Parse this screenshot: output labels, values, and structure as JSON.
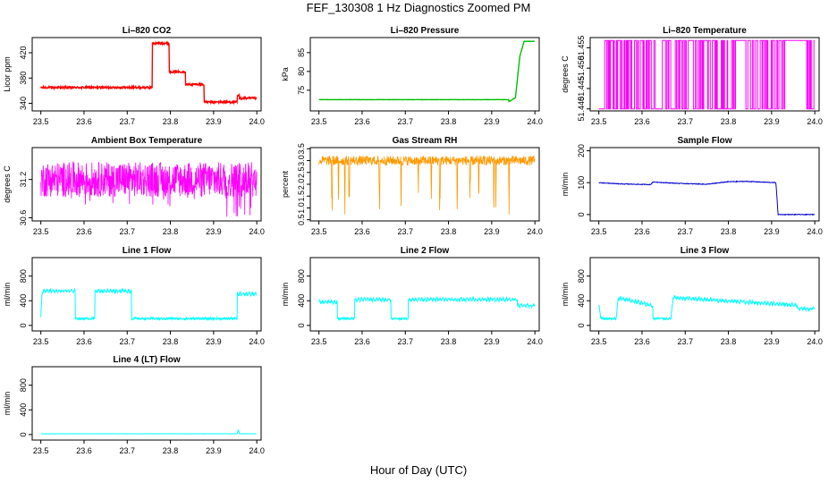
{
  "title": "FEF_130308  1 Hz Diagnostics Zoomed PM",
  "xlabel": "Hour of Day (UTC)",
  "chart_data": [
    {
      "type": "line",
      "title": "Li–820 CO2",
      "ylabel": "Licor ppm",
      "color": "#ff0000",
      "xlim": [
        23.48,
        24.01
      ],
      "ylim": [
        328,
        444
      ],
      "xticks": [
        "23.5",
        "23.6",
        "23.7",
        "23.8",
        "23.9",
        "24.0"
      ],
      "yticks": [
        340,
        380,
        420
      ],
      "series": [
        {
          "x": [
            23.5,
            23.758,
            23.758,
            23.797,
            23.797,
            23.835,
            23.835,
            23.878,
            23.878,
            23.955,
            23.955,
            23.96,
            23.96,
            24.0
          ],
          "y": [
            365,
            365,
            435,
            435,
            390,
            390,
            370,
            370,
            342,
            342,
            352,
            352,
            348,
            348
          ]
        }
      ]
    },
    {
      "type": "line",
      "title": "Li–820 Pressure",
      "ylabel": "kPa",
      "color": "#00c000",
      "xlim": [
        23.48,
        24.01
      ],
      "ylim": [
        69.5,
        89
      ],
      "xticks": [
        "23.5",
        "23.6",
        "23.7",
        "23.8",
        "23.9",
        "24.0"
      ],
      "yticks": [
        75,
        80,
        85
      ],
      "series": [
        {
          "x": [
            23.5,
            23.94,
            23.94,
            23.955,
            23.965,
            23.975,
            24.0
          ],
          "y": [
            72.5,
            72.5,
            72,
            73,
            84,
            88,
            88
          ]
        }
      ]
    },
    {
      "type": "line",
      "title": "Li–820 Temperature",
      "ylabel": "degrees C",
      "color": "#ff00ff",
      "xlim": [
        23.48,
        24.01
      ],
      "ylim": [
        51.4395,
        51.4575
      ],
      "xticks": [
        "23.5",
        "23.6",
        "23.7",
        "23.8",
        "23.9",
        "24.0"
      ],
      "yticks": [
        "51.440",
        "51.445",
        "51.450",
        "51.455"
      ],
      "series": [
        {
          "x": [
            23.5,
            24.0
          ],
          "y": [
            51.44,
            51.457
          ]
        }
      ]
    },
    {
      "type": "line",
      "title": "Ambient Box Temperature",
      "ylabel": "degrees C",
      "color": "#ff00ff",
      "xlim": [
        23.48,
        24.01
      ],
      "ylim": [
        30.55,
        31.7
      ],
      "xticks": [
        "23.5",
        "23.6",
        "23.7",
        "23.8",
        "23.9",
        "24.0"
      ],
      "yticks": [
        "30.6",
        "31.2"
      ],
      "series": [
        {
          "x": [
            23.5,
            24.0
          ],
          "y": [
            31.2,
            31.2
          ]
        }
      ]
    },
    {
      "type": "line",
      "title": "Gas Stream RH",
      "ylabel": "percent",
      "color": "#ff9900",
      "xlim": [
        23.48,
        24.01
      ],
      "ylim": [
        0.45,
        3.55
      ],
      "xticks": [
        "23.5",
        "23.6",
        "23.7",
        "23.8",
        "23.9",
        "24.0"
      ],
      "yticks": [
        "0.5",
        "1.0",
        "1.5",
        "2.0",
        "2.5",
        "3.0",
        "3.5"
      ],
      "series": [
        {
          "x": [
            23.5,
            24.0
          ],
          "y": [
            3.0,
            3.0
          ]
        }
      ]
    },
    {
      "type": "line",
      "title": "Sample Flow",
      "ylabel": "ml/min",
      "color": "#0000cc",
      "xlim": [
        23.48,
        24.01
      ],
      "ylim": [
        -20,
        210
      ],
      "xticks": [
        "23.5",
        "23.6",
        "23.7",
        "23.8",
        "23.9",
        "24.0"
      ],
      "yticks": [
        0,
        100,
        200
      ],
      "series": [
        {
          "x": [
            23.5,
            23.55,
            23.62,
            23.625,
            23.68,
            23.75,
            23.8,
            23.84,
            23.91,
            23.915,
            24.0
          ],
          "y": [
            100,
            96,
            94,
            102,
            98,
            95,
            103,
            104,
            100,
            0,
            0
          ]
        }
      ]
    },
    {
      "type": "line",
      "title": "Line 1 Flow",
      "ylabel": "ml/min",
      "color": "#00ffff",
      "xlim": [
        23.48,
        24.01
      ],
      "ylim": [
        -90,
        1100
      ],
      "xticks": [
        "23.5",
        "23.6",
        "23.7",
        "23.8",
        "23.9",
        "24.0"
      ],
      "yticks": [
        0,
        400,
        800
      ],
      "series": [
        {
          "x": [
            23.5,
            23.503,
            23.58,
            23.58,
            23.625,
            23.625,
            23.71,
            23.71,
            23.955,
            23.955,
            24.0
          ],
          "y": [
            130,
            560,
            560,
            110,
            110,
            560,
            560,
            110,
            110,
            510,
            510
          ]
        }
      ]
    },
    {
      "type": "line",
      "title": "Line 2 Flow",
      "ylabel": "ml/min",
      "color": "#00ffff",
      "xlim": [
        23.48,
        24.01
      ],
      "ylim": [
        -90,
        1100
      ],
      "xticks": [
        "23.5",
        "23.6",
        "23.7",
        "23.8",
        "23.9",
        "24.0"
      ],
      "yticks": [
        0,
        400,
        800
      ],
      "series": [
        {
          "x": [
            23.5,
            23.543,
            23.543,
            23.583,
            23.583,
            23.667,
            23.667,
            23.707,
            23.707,
            23.96,
            23.96,
            24.0
          ],
          "y": [
            380,
            380,
            110,
            110,
            420,
            420,
            110,
            110,
            420,
            420,
            320,
            320
          ]
        }
      ]
    },
    {
      "type": "line",
      "title": "Line 3 Flow",
      "ylabel": "ml/min",
      "color": "#00ffff",
      "xlim": [
        23.48,
        24.01
      ],
      "ylim": [
        -90,
        1100
      ],
      "xticks": [
        "23.5",
        "23.6",
        "23.7",
        "23.8",
        "23.9",
        "24.0"
      ],
      "yticks": [
        0,
        400,
        800
      ],
      "series": [
        {
          "x": [
            23.5,
            23.505,
            23.54,
            23.545,
            23.625,
            23.625,
            23.667,
            23.672,
            23.96,
            23.96,
            24.0
          ],
          "y": [
            330,
            110,
            110,
            450,
            320,
            110,
            110,
            450,
            330,
            270,
            270
          ]
        }
      ]
    },
    {
      "type": "line",
      "title": "Line 4 (LT) Flow",
      "ylabel": "ml/min",
      "color": "#00ffff",
      "xlim": [
        23.48,
        24.01
      ],
      "ylim": [
        -90,
        1100
      ],
      "xticks": [
        "23.5",
        "23.6",
        "23.7",
        "23.8",
        "23.9",
        "24.0"
      ],
      "yticks": [
        0,
        400,
        800
      ],
      "series": [
        {
          "x": [
            23.5,
            23.955,
            23.957,
            23.96,
            24.0
          ],
          "y": [
            12,
            12,
            80,
            12,
            12
          ]
        }
      ]
    }
  ]
}
